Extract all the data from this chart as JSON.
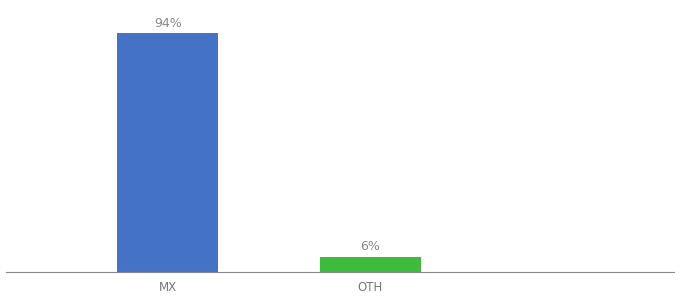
{
  "categories": [
    "MX",
    "OTH"
  ],
  "values": [
    94,
    6
  ],
  "bar_colors": [
    "#4472c4",
    "#3dbb3d"
  ],
  "labels": [
    "94%",
    "6%"
  ],
  "background_color": "#ffffff",
  "ylim": [
    0,
    105
  ],
  "label_fontsize": 9,
  "tick_fontsize": 8.5,
  "bar_width": 0.5,
  "xlim": [
    -0.8,
    2.5
  ]
}
